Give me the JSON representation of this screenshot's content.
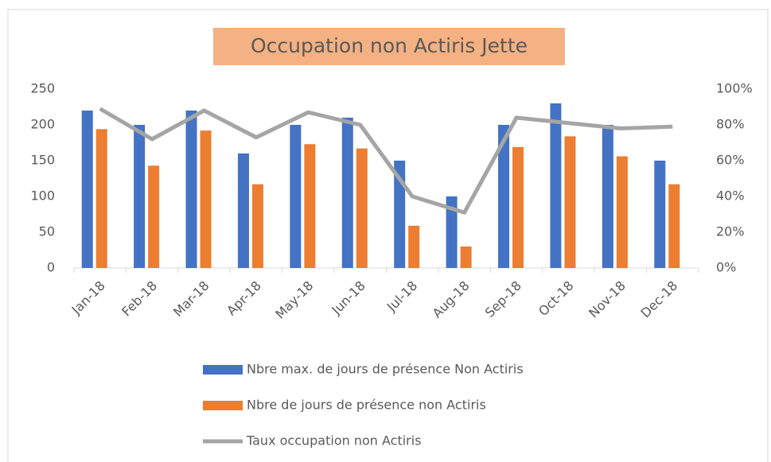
{
  "chart_data": {
    "type": "bar_line",
    "title": "Occupation non Actiris Jette",
    "categories": [
      "Jan-18",
      "Feb-18",
      "Mar-18",
      "Apr-18",
      "May-18",
      "Jun-18",
      "Jul-18",
      "Aug-18",
      "Sep-18",
      "Oct-18",
      "Nov-18",
      "Dec-18"
    ],
    "series": [
      {
        "name": "Nbre max. de jours de présence Non Actiris",
        "color": "#4472c4",
        "type": "bar",
        "values": [
          220,
          200,
          220,
          160,
          200,
          210,
          150,
          100,
          200,
          230,
          200,
          150
        ]
      },
      {
        "name": "Nbre de jours de présence non Actiris",
        "color": "#ed7d31",
        "type": "bar",
        "values": [
          194,
          143,
          192,
          117,
          173,
          167,
          59,
          30,
          169,
          184,
          156,
          117
        ]
      },
      {
        "name": "Taux occupation non Actiris",
        "color": "#a5a5a5",
        "type": "line",
        "axis": "y2",
        "values": [
          89,
          72,
          88,
          73,
          87,
          80,
          40,
          31,
          84,
          81,
          78,
          79
        ]
      }
    ],
    "ylim": [
      0,
      250
    ],
    "yticks": [
      0,
      50,
      100,
      150,
      200,
      250
    ],
    "y2lim": [
      0,
      100
    ],
    "y2ticks": [
      {
        "value": 0,
        "label": "0%"
      },
      {
        "value": 20,
        "label": "20%"
      },
      {
        "value": 40,
        "label": "40%"
      },
      {
        "value": 60,
        "label": "60%"
      },
      {
        "value": 80,
        "label": "80%"
      },
      {
        "value": 100,
        "label": "100%"
      }
    ],
    "grid": false,
    "legend": "bottom"
  }
}
